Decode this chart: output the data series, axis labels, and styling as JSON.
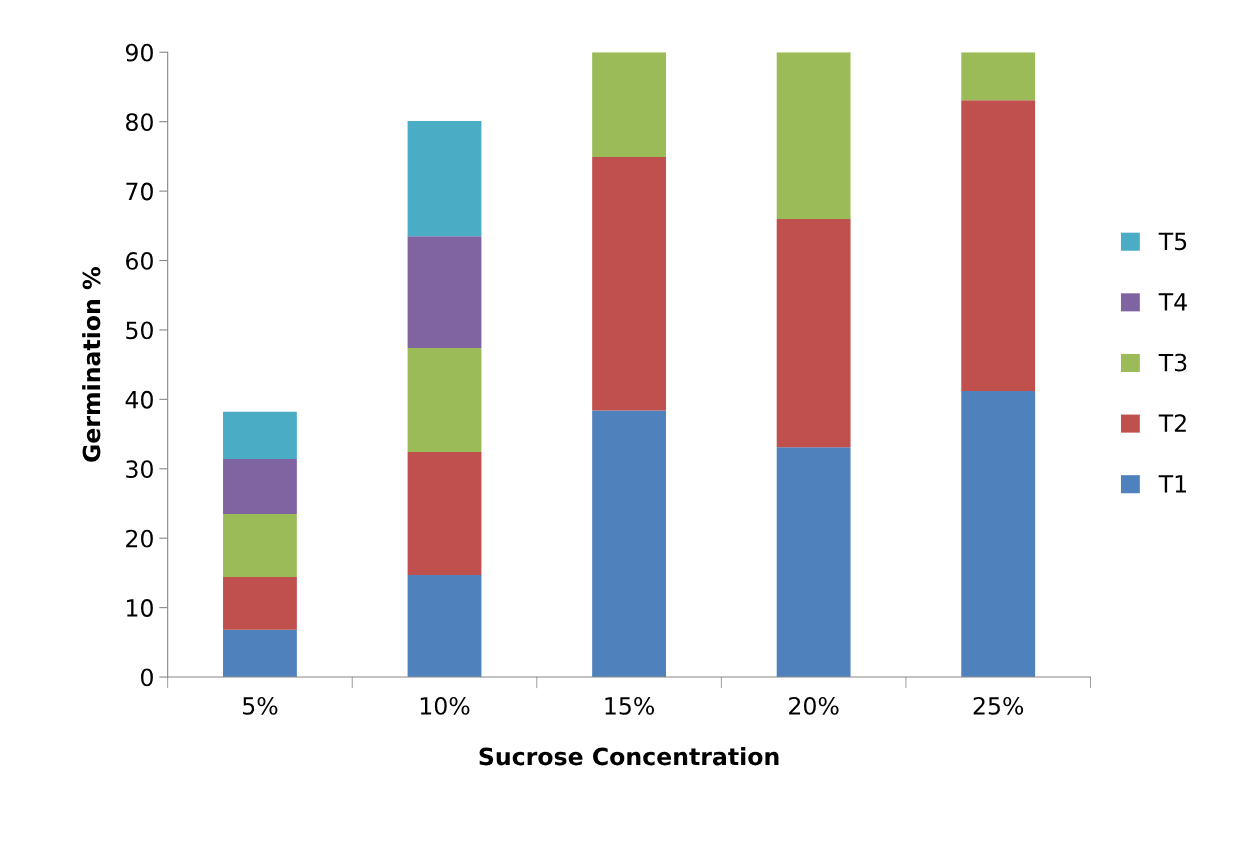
{
  "chart_data": {
    "type": "bar",
    "stacked": true,
    "xlabel": "Sucrose Concentration",
    "ylabel": "Germination %",
    "categories": [
      "5%",
      "10%",
      "15%",
      "20%",
      "25%"
    ],
    "series": [
      {
        "name": "T1",
        "color": "#4f81bd",
        "values": [
          6.8,
          14.7,
          38.4,
          33.1,
          41.2
        ]
      },
      {
        "name": "T2",
        "color": "#c0504d",
        "values": [
          7.6,
          17.7,
          36.5,
          32.9,
          41.9
        ]
      },
      {
        "name": "T3",
        "color": "#9bbb59",
        "values": [
          9.1,
          15.0,
          15.1,
          24.0,
          6.9
        ]
      },
      {
        "name": "T4",
        "color": "#8064a2",
        "values": [
          7.9,
          16.1,
          null,
          null,
          null
        ]
      },
      {
        "name": "T5",
        "color": "#4bacc6",
        "values": [
          6.8,
          16.6,
          null,
          null,
          null
        ]
      }
    ],
    "ylim": [
      0,
      90
    ],
    "yticks": [
      0,
      10,
      20,
      30,
      40,
      50,
      60,
      70,
      80,
      90
    ],
    "grid": false,
    "legend": "right"
  }
}
